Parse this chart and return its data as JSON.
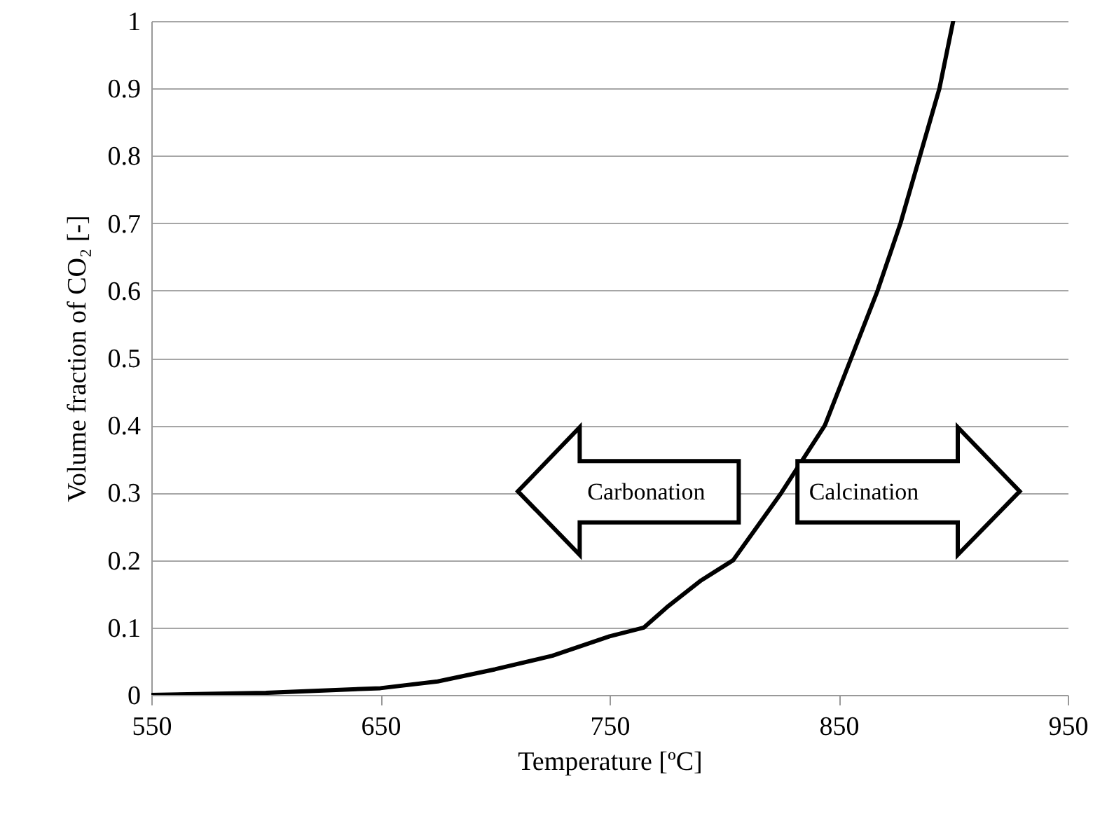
{
  "chart_data": {
    "type": "line",
    "xlabel": "Temperature [ºC]",
    "ylabel": "Volume fraction of CO₂ [-]",
    "x": [
      550,
      600,
      650,
      675,
      700,
      725,
      750,
      765,
      775,
      790,
      804,
      825,
      844,
      855.5,
      867,
      877,
      885.5,
      894,
      900
    ],
    "series": [
      {
        "color": "#000000",
        "values": [
          0,
          0.003,
          0.01,
          0.02,
          0.038,
          0.058,
          0.087,
          0.1,
          0.13,
          0.17,
          0.2,
          0.3,
          0.4,
          0.5,
          0.6,
          0.7,
          0.8,
          0.9,
          1
        ]
      }
    ],
    "xlim": [
      550,
      950
    ],
    "xticks": [
      550,
      650,
      750,
      850,
      950
    ],
    "ylim": [
      0,
      1
    ],
    "yticks": [
      0,
      0.1,
      0.2,
      0.3,
      0.4,
      0.5,
      0.6,
      0.7,
      0.8,
      0.9,
      1
    ],
    "grid": "y",
    "marker": "none",
    "line_style": "solid",
    "annotations": [
      "Carbonation",
      "Calcination"
    ]
  }
}
